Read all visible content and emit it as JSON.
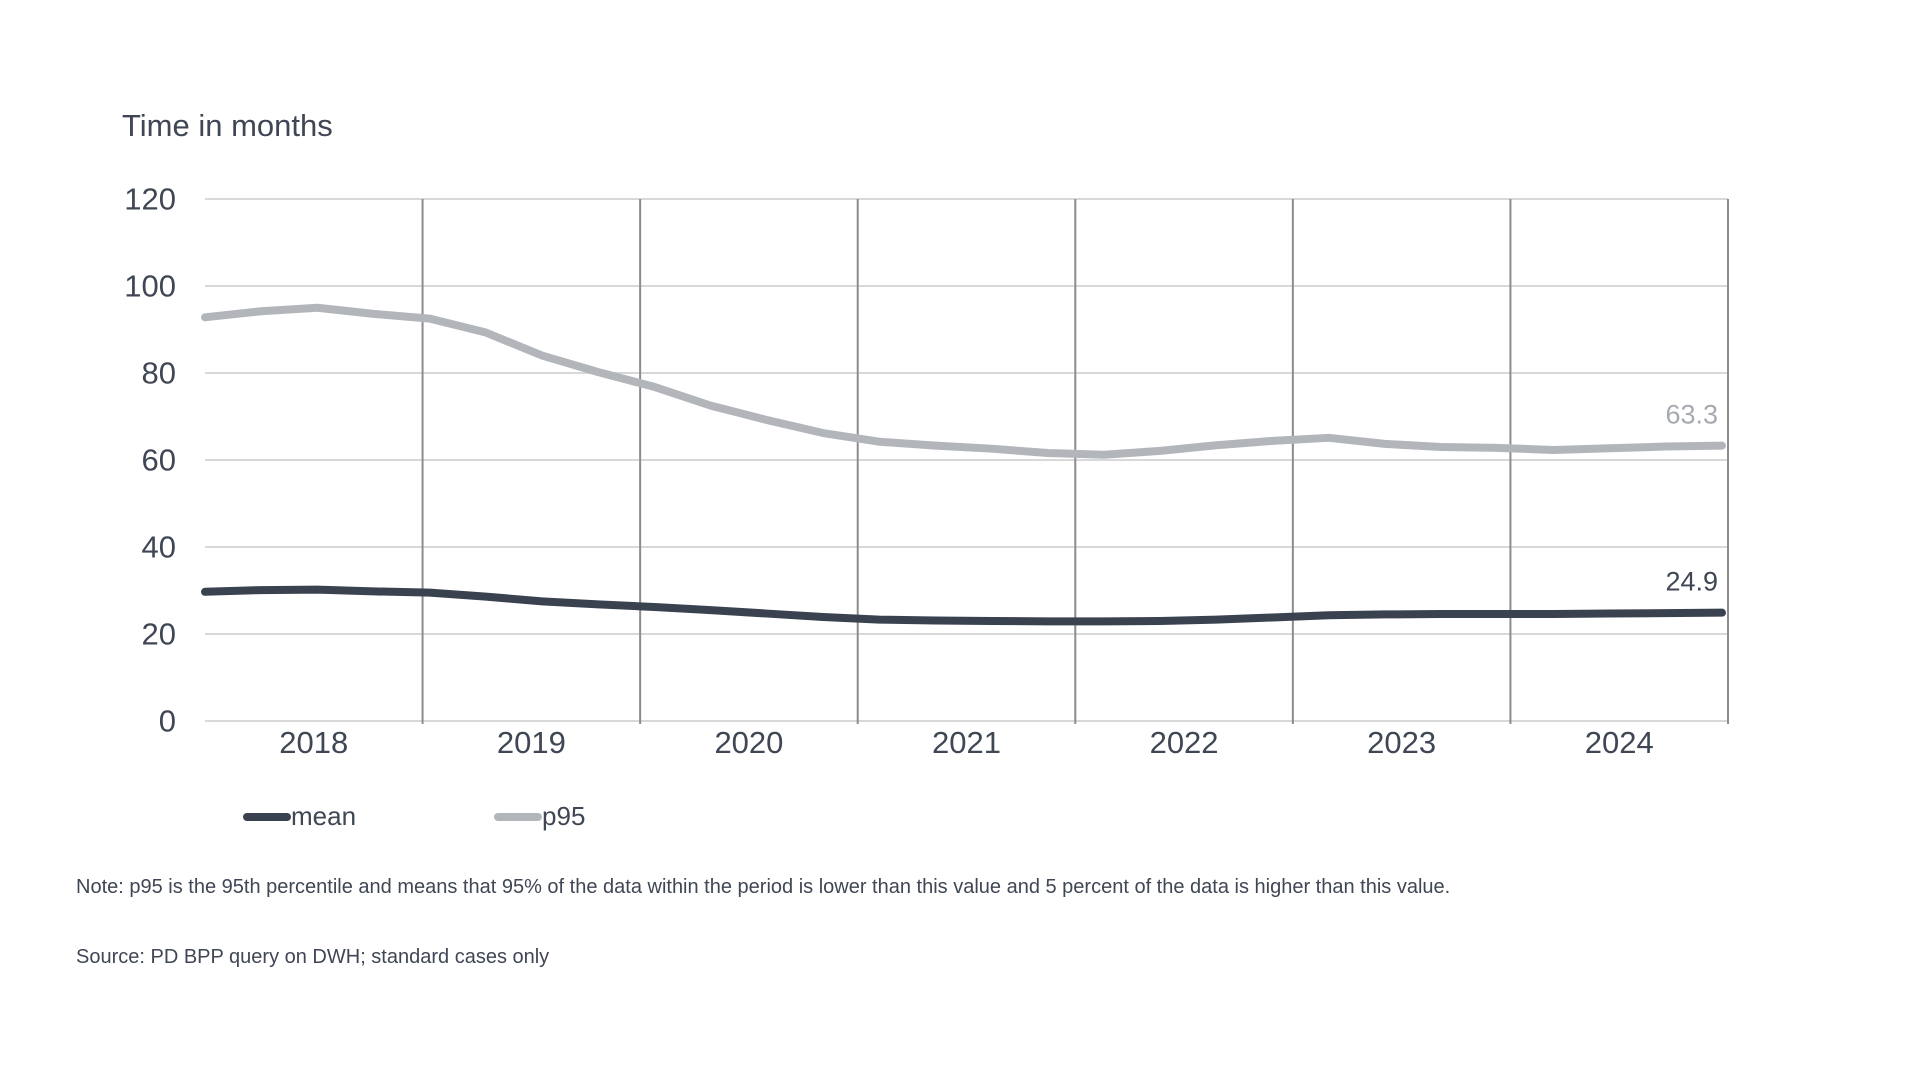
{
  "title": "Time in months",
  "note": "Note: p95 is the 95th percentile and means that 95% of the data within the period is lower than this value and 5 percent of the data is higher than this value.",
  "source": "Source: PD BPP query on DWH; standard cases only",
  "legend": {
    "position": "bottom",
    "items": [
      {
        "label": "mean",
        "color": "#3a4250"
      },
      {
        "label": "p95",
        "color": "#b2b6bb"
      }
    ]
  },
  "colors": {
    "background": "#ffffff",
    "text_dark": "#3f4654",
    "h_gridline": "#d8d8d8",
    "v_gridline": "#8c8c8c",
    "mean_line": "#3a4250",
    "p95_line": "#b2b6bb",
    "p95_label": "#a6aab0",
    "mean_label": "#3f4654"
  },
  "chart_data": {
    "type": "line",
    "title": "Time in months",
    "xlabel": "",
    "ylabel": "Time in months",
    "ylim": [
      0,
      120
    ],
    "grid": {
      "horizontal": true,
      "vertical_year_separators": true,
      "right_border": true
    },
    "legend_position": "bottom",
    "x_axis": {
      "years": [
        "2018",
        "2019",
        "2020",
        "2021",
        "2022",
        "2023",
        "2024"
      ],
      "points_per_year": 4
    },
    "y_axis": {
      "min": 0,
      "max": 120,
      "tick_step": 20,
      "ticks": [
        0,
        20,
        40,
        60,
        80,
        100,
        120
      ]
    },
    "series": [
      {
        "name": "p95",
        "color": "#b2b6bb",
        "end_label": "63.3",
        "end_label_color": "#a6aab0",
        "values": [
          92.8,
          94.2,
          95.0,
          93.6,
          92.5,
          89.3,
          84.0,
          80.2,
          76.8,
          72.5,
          69.2,
          66.2,
          64.2,
          63.3,
          62.6,
          61.6,
          61.2,
          62.1,
          63.4,
          64.4,
          65.1,
          63.7,
          63.0,
          62.8,
          62.3,
          62.7,
          63.1,
          63.3
        ]
      },
      {
        "name": "mean",
        "color": "#3a4250",
        "end_label": "24.9",
        "end_label_color": "#3f4654",
        "values": [
          29.7,
          30.1,
          30.2,
          29.8,
          29.5,
          28.6,
          27.5,
          26.8,
          26.2,
          25.5,
          24.7,
          23.9,
          23.3,
          23.1,
          23.0,
          22.9,
          22.9,
          23.0,
          23.3,
          23.8,
          24.3,
          24.5,
          24.6,
          24.6,
          24.6,
          24.7,
          24.8,
          24.9
        ]
      }
    ]
  }
}
